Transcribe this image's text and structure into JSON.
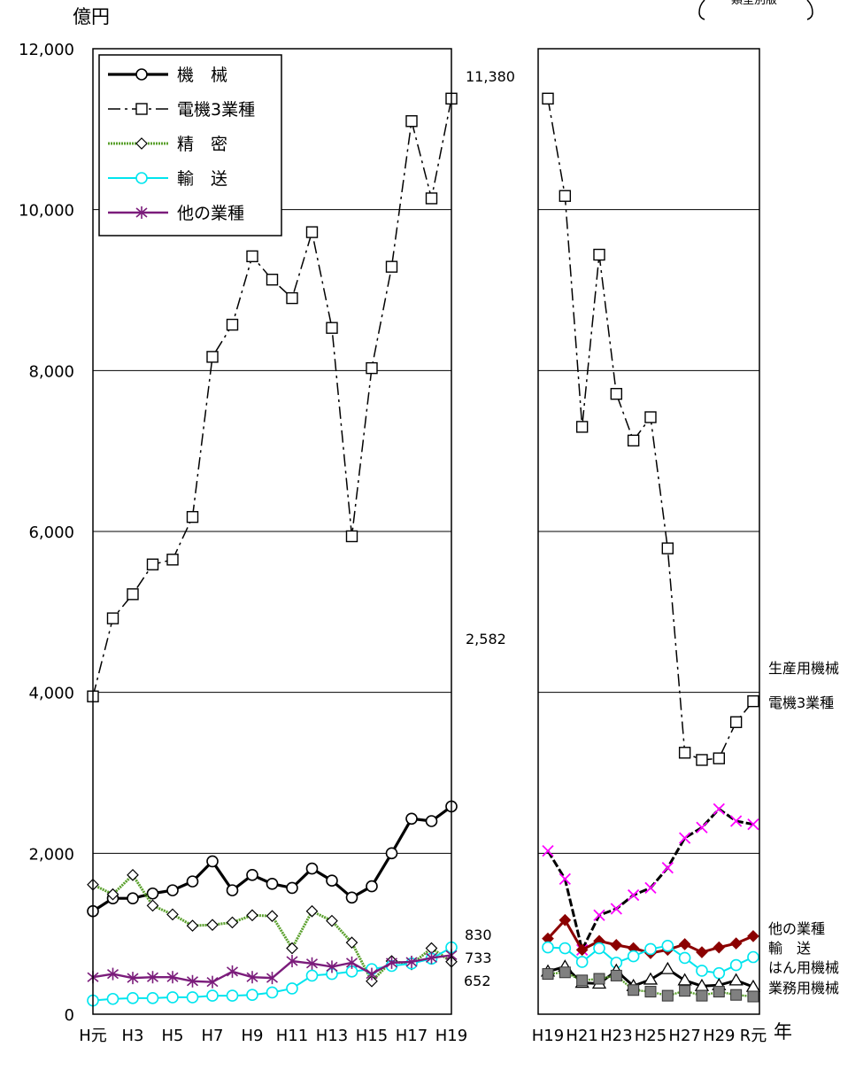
{
  "header": {
    "unit_label": "億円",
    "corner_text": "類型別版",
    "x_unit": "年"
  },
  "chart_data": [
    {
      "type": "line",
      "panel": "left",
      "categories": [
        "H元",
        "H2",
        "H3",
        "H4",
        "H5",
        "H6",
        "H7",
        "H8",
        "H9",
        "H10",
        "H11",
        "H12",
        "H13",
        "H14",
        "H15",
        "H16",
        "H17",
        "H18",
        "H19"
      ],
      "tick_labels": [
        "H元",
        "H3",
        "H5",
        "H7",
        "H9",
        "H11",
        "H13",
        "H15",
        "H17",
        "H19"
      ],
      "ylim": [
        0,
        12000
      ],
      "yticks": [
        "0",
        "2,000",
        "4,000",
        "6,000",
        "8,000",
        "10,000",
        "12,000"
      ],
      "grid": true,
      "legend": "top-left",
      "series": [
        {
          "name": "機　械",
          "color": "#000000",
          "marker": "circle",
          "values": [
            1280,
            1440,
            1440,
            1500,
            1540,
            1650,
            1900,
            1540,
            1730,
            1620,
            1570,
            1810,
            1660,
            1450,
            1590,
            2000,
            2430,
            2400,
            2582
          ]
        },
        {
          "name": "電機3業種",
          "color": "#000000",
          "marker": "square",
          "values": [
            3950,
            4920,
            5220,
            5590,
            5650,
            6180,
            8170,
            8570,
            9420,
            9130,
            8900,
            9720,
            8530,
            5940,
            8030,
            9290,
            11100,
            10140,
            11380
          ]
        },
        {
          "name": "精　密",
          "color": "#5aa02c",
          "marker": "diamond",
          "values": [
            1610,
            1490,
            1730,
            1350,
            1240,
            1100,
            1110,
            1140,
            1230,
            1220,
            820,
            1280,
            1160,
            890,
            410,
            660,
            620,
            820,
            652
          ]
        },
        {
          "name": "輸　送",
          "color": "#00e5ee",
          "marker": "circle",
          "values": [
            170,
            190,
            200,
            200,
            210,
            210,
            230,
            230,
            240,
            270,
            320,
            480,
            500,
            530,
            560,
            600,
            630,
            690,
            830
          ]
        },
        {
          "name": "他の業種",
          "color": "#7b1c7b",
          "marker": "asterisk",
          "values": [
            460,
            500,
            450,
            460,
            460,
            410,
            400,
            530,
            460,
            450,
            660,
            630,
            590,
            640,
            500,
            640,
            650,
            700,
            733
          ]
        }
      ],
      "annotations": [
        "11,380",
        "2,582",
        "830",
        "733",
        "652"
      ]
    },
    {
      "type": "line",
      "panel": "right",
      "categories": [
        "H19",
        "H20",
        "H21",
        "H22",
        "H23",
        "H24",
        "H25",
        "H26",
        "H27",
        "H28",
        "H29",
        "H30",
        "R元"
      ],
      "tick_labels": [
        "H19",
        "H21",
        "H23",
        "H25",
        "H27",
        "H29",
        "R元"
      ],
      "ylim": [
        0,
        12000
      ],
      "grid": true,
      "series": [
        {
          "name": "電機3業種",
          "color": "#000000",
          "marker": "square",
          "values": [
            11380,
            10170,
            7300,
            9440,
            7710,
            7130,
            7420,
            5790,
            3250,
            3160,
            3180,
            3630,
            3890
          ]
        },
        {
          "name": "生産用機械",
          "color": "#ff00ff",
          "marker": "x",
          "values": [
            2030,
            1680,
            800,
            1230,
            1310,
            1480,
            1570,
            1820,
            2190,
            2320,
            2550,
            2400,
            2360
          ]
        },
        {
          "name": "他の業種",
          "color": "#8b0000",
          "marker": "diamond",
          "values": [
            940,
            1170,
            800,
            910,
            860,
            820,
            760,
            800,
            870,
            770,
            830,
            880,
            970
          ]
        },
        {
          "name": "輸　送",
          "color": "#00e5ee",
          "marker": "circle",
          "values": [
            830,
            820,
            650,
            820,
            640,
            720,
            810,
            850,
            700,
            540,
            510,
            610,
            710
          ]
        },
        {
          "name": "はん用機械",
          "color": "#000000",
          "marker": "triangle",
          "values": [
            530,
            590,
            390,
            380,
            540,
            350,
            430,
            560,
            420,
            350,
            360,
            420,
            340
          ]
        },
        {
          "name": "業務用機械",
          "color": "#808080",
          "marker": "filled-square",
          "values": [
            500,
            520,
            420,
            440,
            480,
            300,
            280,
            230,
            290,
            230,
            280,
            240,
            220
          ]
        }
      ],
      "end_labels": [
        "電機3業種",
        "生産用機械",
        "他の業種",
        "輸　送",
        "はん用機械",
        "業務用機械"
      ]
    }
  ]
}
